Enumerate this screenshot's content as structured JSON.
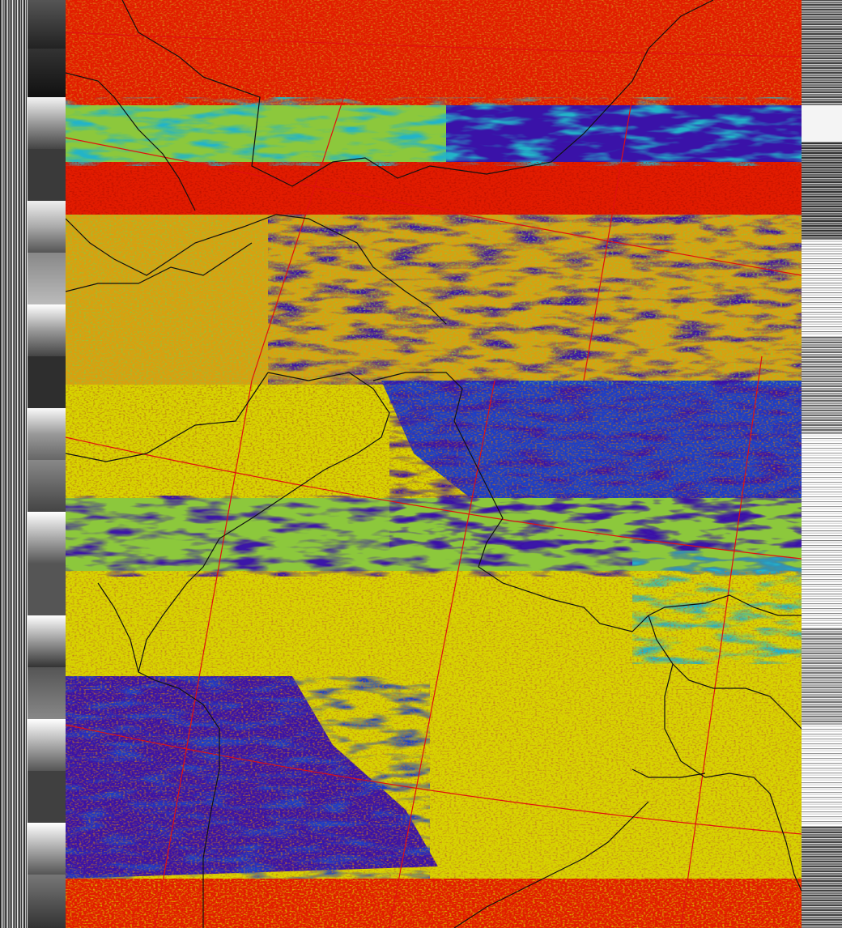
{
  "image": {
    "palette": {
      "cold_cloud": "#3a12a8",
      "deep_blue": "#1c3ec8",
      "cyan": "#22b4c8",
      "green": "#8cc83c",
      "yellow": "#d8d400",
      "orange": "#d88a1a",
      "red": "#e21c00",
      "dark_red": "#b81000"
    },
    "overlay": {
      "border_color": "#111111",
      "graticule_color": "#e01010"
    }
  }
}
